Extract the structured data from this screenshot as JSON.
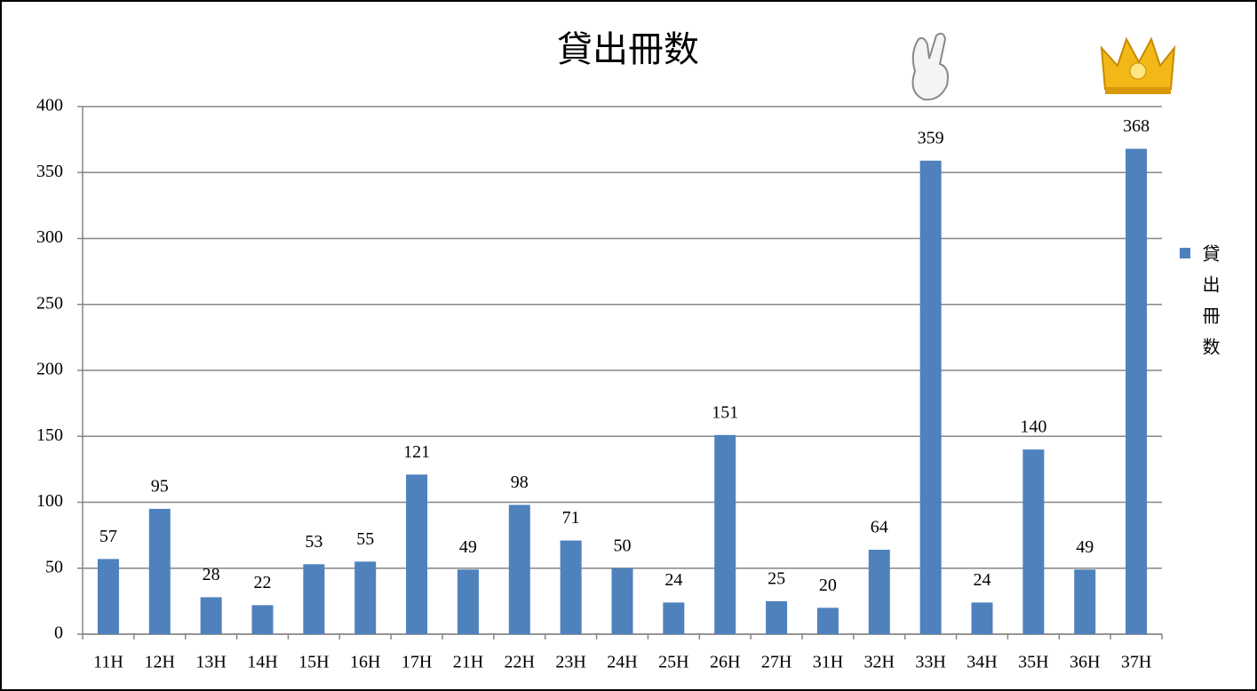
{
  "chart_data": {
    "type": "bar",
    "title": "貸出冊数",
    "categories": [
      "11H",
      "12H",
      "13H",
      "14H",
      "15H",
      "16H",
      "17H",
      "21H",
      "22H",
      "23H",
      "24H",
      "25H",
      "26H",
      "27H",
      "31H",
      "32H",
      "33H",
      "34H",
      "35H",
      "36H",
      "37H"
    ],
    "series": [
      {
        "name": "貸出冊数",
        "color": "#4f81bd",
        "values": [
          57,
          95,
          28,
          22,
          53,
          55,
          121,
          49,
          98,
          71,
          50,
          24,
          151,
          25,
          20,
          64,
          359,
          24,
          140,
          49,
          368
        ]
      }
    ],
    "ylim": [
      0,
      400
    ],
    "yticks": [
      0,
      50,
      100,
      150,
      200,
      250,
      300,
      350,
      400
    ],
    "grid": true,
    "legend": "right"
  }
}
